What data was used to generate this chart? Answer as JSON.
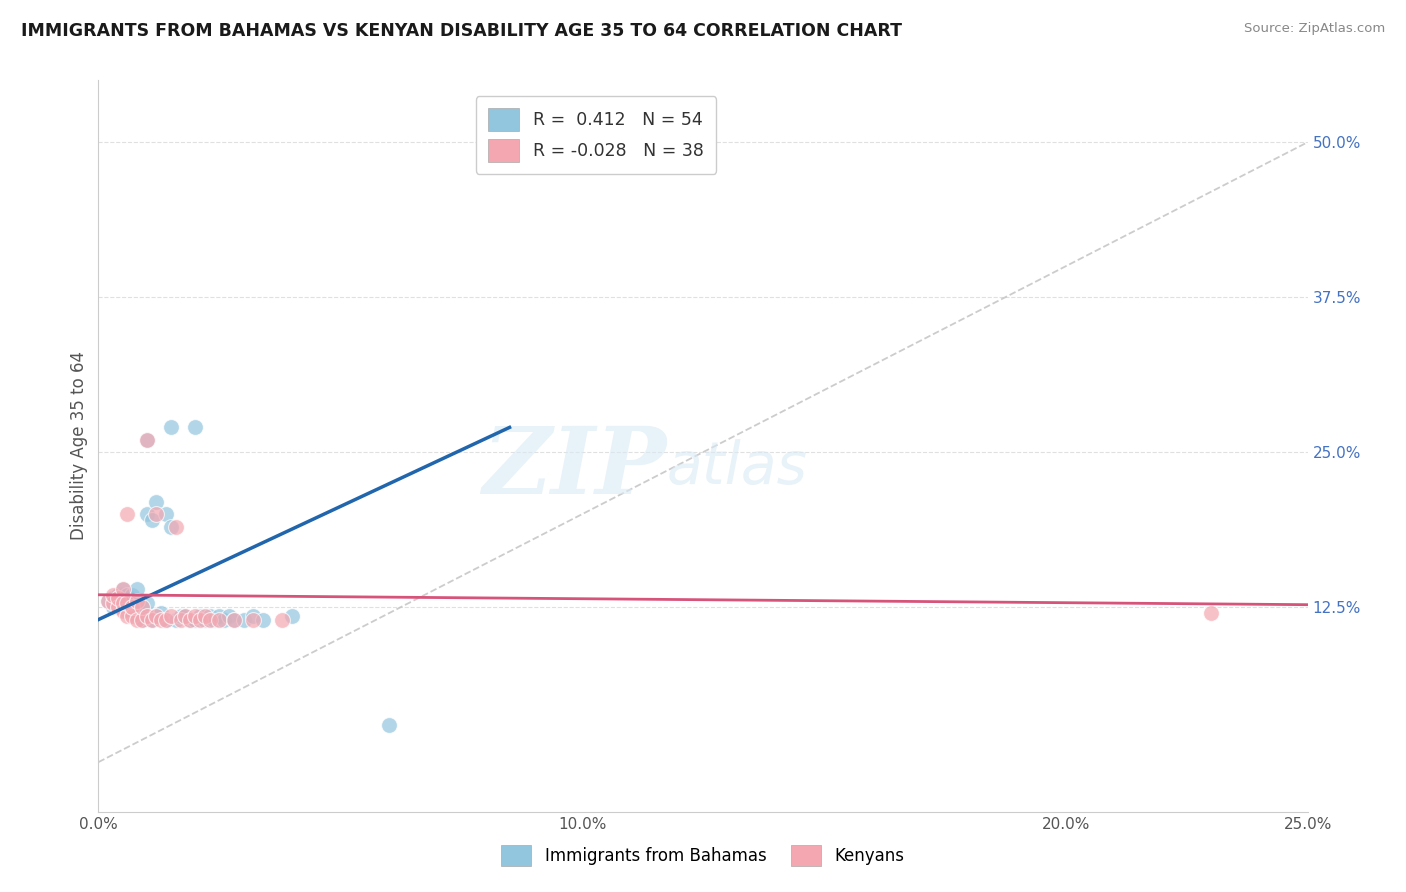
{
  "title": "IMMIGRANTS FROM BAHAMAS VS KENYAN DISABILITY AGE 35 TO 64 CORRELATION CHART",
  "source": "Source: ZipAtlas.com",
  "ylabel": "Disability Age 35 to 64",
  "legend_label_1": "Immigrants from Bahamas",
  "legend_label_2": "Kenyans",
  "R1": 0.412,
  "N1": 54,
  "R2": -0.028,
  "N2": 38,
  "color1": "#92c5de",
  "color2": "#f4a7b1",
  "color1_line": "#2166ac",
  "color2_line": "#d6547a",
  "xlim": [
    0.0,
    0.25
  ],
  "ylim": [
    -0.04,
    0.55
  ],
  "yticks": [
    0.125,
    0.25,
    0.375,
    0.5
  ],
  "ytick_labels": [
    "12.5%",
    "25.0%",
    "37.5%",
    "50.0%"
  ],
  "xticks": [
    0.0,
    0.05,
    0.1,
    0.15,
    0.2,
    0.25
  ],
  "xtick_labels": [
    "0.0%",
    "",
    "10.0%",
    "",
    "20.0%",
    "25.0%"
  ],
  "watermark_zip": "ZIP",
  "watermark_atlas": "atlas",
  "background": "#ffffff",
  "grid_color": "#e0e0e0",
  "ref_line_color": "#c0c0c0",
  "scatter1_x": [
    0.002,
    0.003,
    0.003,
    0.004,
    0.004,
    0.004,
    0.005,
    0.005,
    0.005,
    0.005,
    0.005,
    0.006,
    0.006,
    0.006,
    0.007,
    0.007,
    0.007,
    0.008,
    0.008,
    0.008,
    0.009,
    0.009,
    0.01,
    0.01,
    0.01,
    0.011,
    0.011,
    0.012,
    0.012,
    0.013,
    0.014,
    0.014,
    0.015,
    0.016,
    0.017,
    0.018,
    0.019,
    0.02,
    0.021,
    0.022,
    0.023,
    0.024,
    0.025,
    0.026,
    0.027,
    0.028,
    0.03,
    0.032,
    0.034,
    0.04,
    0.01,
    0.015,
    0.02,
    0.06
  ],
  "scatter1_y": [
    0.13,
    0.125,
    0.132,
    0.128,
    0.13,
    0.135,
    0.125,
    0.128,
    0.13,
    0.135,
    0.14,
    0.122,
    0.128,
    0.135,
    0.12,
    0.128,
    0.135,
    0.118,
    0.125,
    0.14,
    0.115,
    0.125,
    0.118,
    0.128,
    0.2,
    0.115,
    0.195,
    0.118,
    0.21,
    0.12,
    0.115,
    0.2,
    0.19,
    0.115,
    0.118,
    0.118,
    0.115,
    0.115,
    0.118,
    0.115,
    0.118,
    0.115,
    0.118,
    0.115,
    0.118,
    0.115,
    0.115,
    0.118,
    0.115,
    0.118,
    0.26,
    0.27,
    0.27,
    0.03
  ],
  "scatter2_x": [
    0.002,
    0.003,
    0.003,
    0.004,
    0.004,
    0.005,
    0.005,
    0.005,
    0.006,
    0.006,
    0.006,
    0.007,
    0.007,
    0.008,
    0.008,
    0.009,
    0.009,
    0.01,
    0.01,
    0.011,
    0.012,
    0.012,
    0.013,
    0.014,
    0.015,
    0.016,
    0.017,
    0.018,
    0.019,
    0.02,
    0.021,
    0.022,
    0.023,
    0.025,
    0.028,
    0.032,
    0.038,
    0.23
  ],
  "scatter2_y": [
    0.13,
    0.128,
    0.135,
    0.125,
    0.132,
    0.122,
    0.128,
    0.14,
    0.118,
    0.128,
    0.2,
    0.118,
    0.125,
    0.115,
    0.13,
    0.115,
    0.125,
    0.118,
    0.26,
    0.115,
    0.118,
    0.2,
    0.115,
    0.115,
    0.118,
    0.19,
    0.115,
    0.118,
    0.115,
    0.118,
    0.115,
    0.118,
    0.115,
    0.115,
    0.115,
    0.115,
    0.115,
    0.12
  ],
  "trend1_x": [
    0.0,
    0.085
  ],
  "trend1_y": [
    0.115,
    0.27
  ],
  "trend2_x": [
    0.0,
    0.25
  ],
  "trend2_y": [
    0.135,
    0.127
  ]
}
